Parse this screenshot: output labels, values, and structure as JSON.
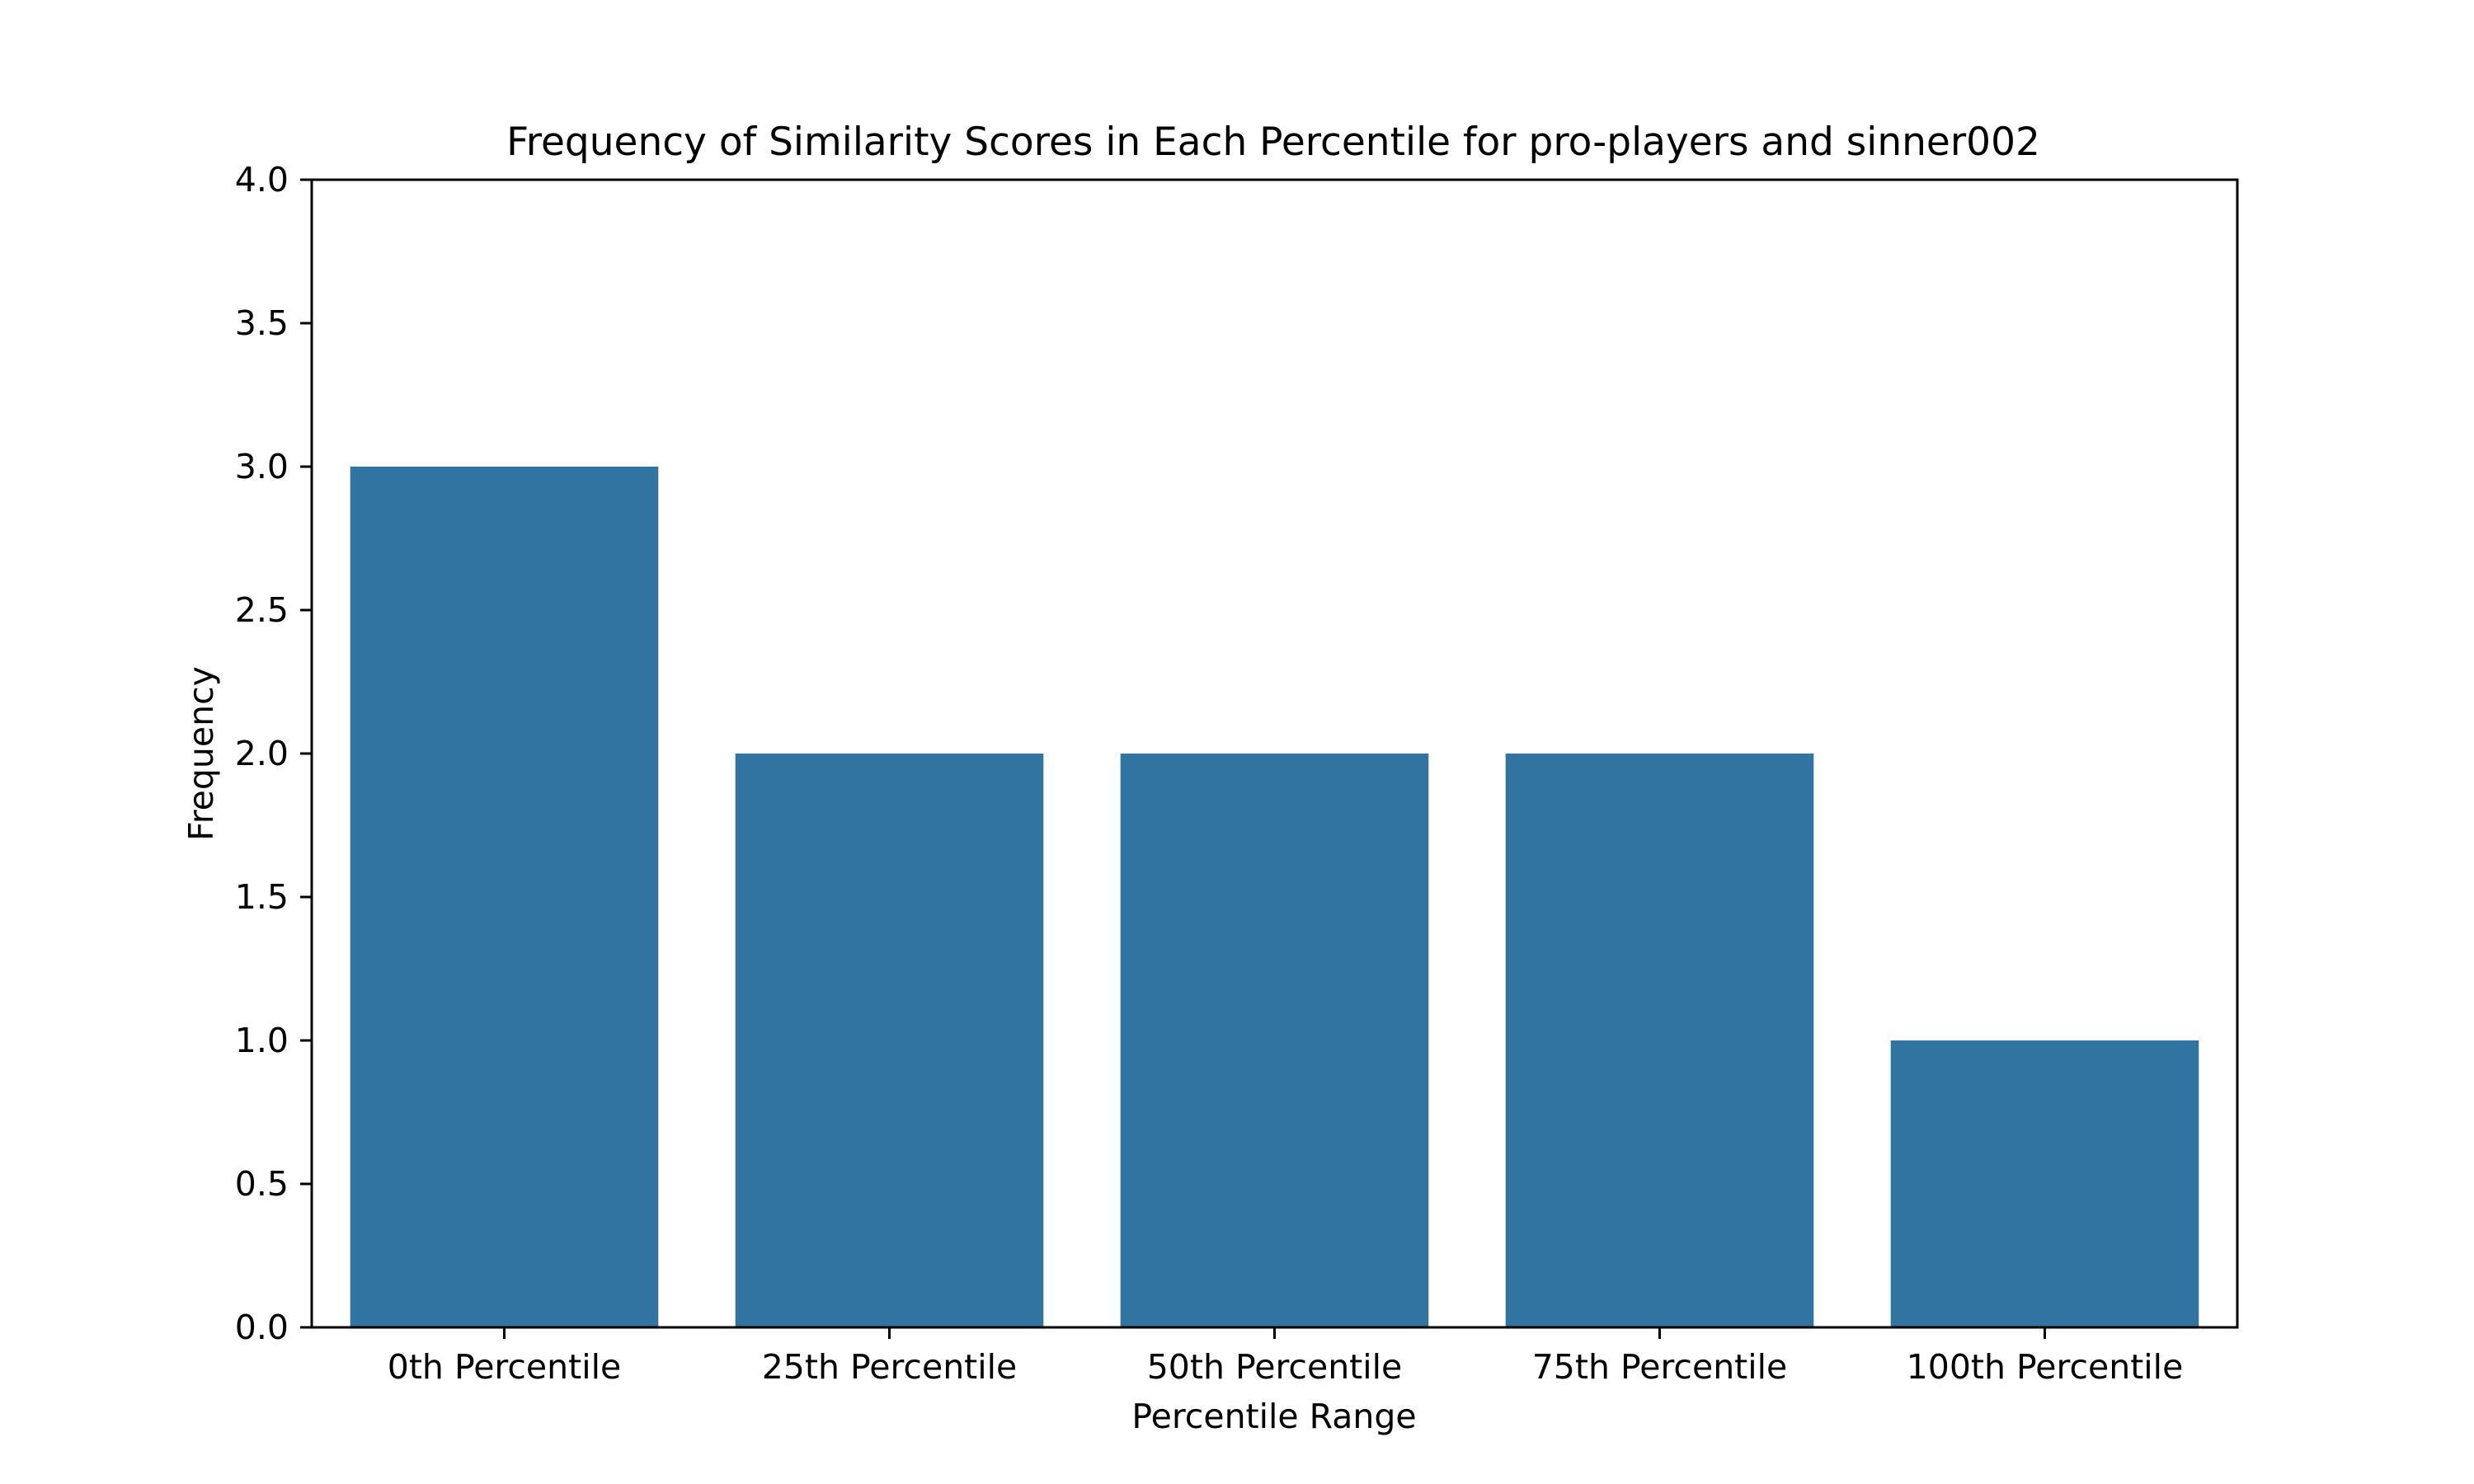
{
  "chart_data": {
    "type": "bar",
    "title": "Frequency of Similarity Scores in Each Percentile for pro-players and sinner002",
    "xlabel": "Percentile Range",
    "ylabel": "Frequency",
    "categories": [
      "0th Percentile",
      "25th Percentile",
      "50th Percentile",
      "75th Percentile",
      "100th Percentile"
    ],
    "values": [
      3,
      2,
      2,
      2,
      1
    ],
    "ylim": [
      0,
      4
    ],
    "yticks": [
      "0.0",
      "0.5",
      "1.0",
      "1.5",
      "2.0",
      "2.5",
      "3.0",
      "3.5",
      "4.0"
    ],
    "grid": false,
    "legend": "none",
    "bar_color": "#3274a1"
  }
}
